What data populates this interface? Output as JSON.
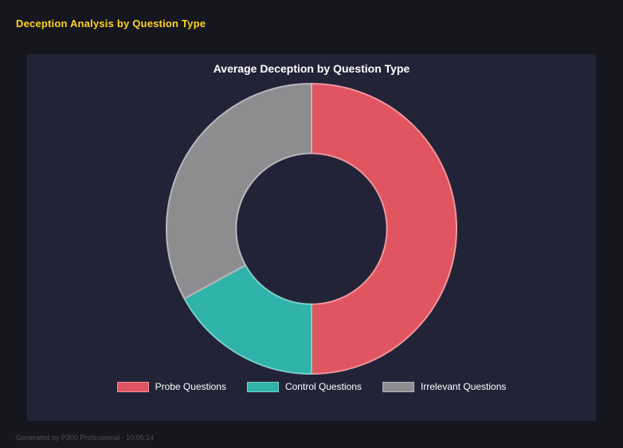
{
  "page": {
    "title": "Deception Analysis by Question Type",
    "footer": "Generated by P300 Professional - 10:05:14"
  },
  "chart_data": {
    "type": "pie",
    "variant": "donut",
    "title": "Average Deception by Question Type",
    "labels": [
      "Probe Questions",
      "Control Questions",
      "Irrelevant Questions"
    ],
    "values": [
      50,
      17,
      33
    ],
    "unit": "percent_of_circle",
    "colors": [
      "#e05560",
      "#2fb2a9",
      "#8d8d90"
    ],
    "border_colors": [
      "#f0969d",
      "#79d1ca",
      "#b8b8bc"
    ],
    "start_angle_deg": -90,
    "direction": "clockwise",
    "inner_radius_ratio": 0.52,
    "legend_position": "bottom"
  },
  "colors": {
    "background": "#16161f",
    "panel": "#232337",
    "accent_title": "#ffd21e",
    "text": "#ffffff",
    "footer_text": "#4c4c5e"
  }
}
